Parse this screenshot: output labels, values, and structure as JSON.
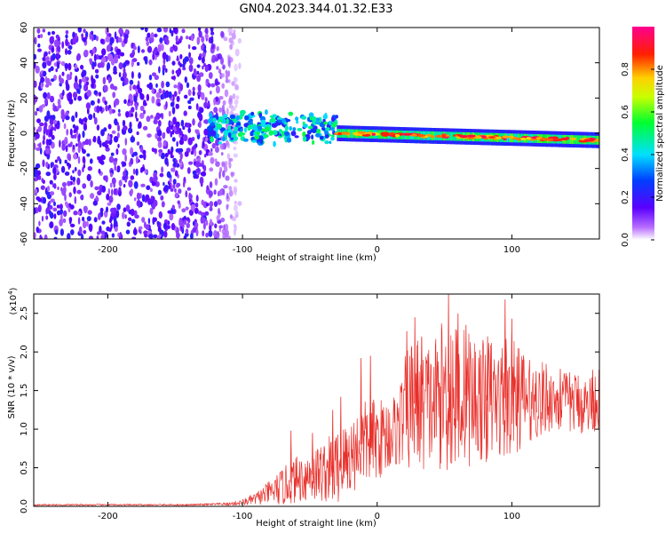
{
  "figure": {
    "title": "GN04.2023.344.01.32.E33",
    "colors": {
      "axis": "#000000",
      "snr_line": "#e8302b",
      "background": "#ffffff"
    }
  },
  "chart_data": [
    {
      "type": "heatmap",
      "name": "spectrogram",
      "title": "",
      "xlabel": "Height of straight line (km)",
      "ylabel": "Frequency (Hz)",
      "xlim": [
        -255,
        165
      ],
      "ylim": [
        -60,
        60
      ],
      "xticks": [
        -200,
        -100,
        0,
        100
      ],
      "xtick_labels": [
        "-200",
        "-100",
        "0",
        "100"
      ],
      "yticks": [
        -60,
        -40,
        -20,
        0,
        20,
        40,
        60
      ],
      "ytick_labels": [
        "-60",
        "-40",
        "-20",
        "0",
        "20",
        "40",
        "60"
      ],
      "colorbar": {
        "label": "Normalized spectral amplitude",
        "range": [
          0,
          1
        ],
        "ticks": [
          0,
          0.2,
          0.4,
          0.6,
          0.8
        ],
        "tick_labels": [
          "0.0",
          "0.2",
          "0.4",
          "0.6",
          "0.8"
        ],
        "colormap": "hsv-reversed (white→violet→blue→cyan→green→yellow→red→magenta)"
      },
      "regions": [
        {
          "description": "broadband noise",
          "x_range": [
            -255,
            -110
          ],
          "freq_range": [
            -60,
            60
          ],
          "amplitude": 0.1
        },
        {
          "description": "signal onset",
          "x_range": [
            -125,
            -30
          ],
          "center_freq": 3,
          "width_hz": 10,
          "amplitude": 0.35
        },
        {
          "description": "narrowband signal",
          "x_range": [
            -30,
            165
          ],
          "center_freq_start": 0,
          "center_freq_end": -4,
          "width_hz": 5,
          "amplitude": 0.9
        }
      ]
    },
    {
      "type": "line",
      "name": "snr",
      "title": "",
      "xlabel": "Height of straight line (km)",
      "ylabel": "SNR (10 * v/v)",
      "y_scale_label": "(x10",
      "y_scale_exp": "4",
      "y_scale_close": ")",
      "xlim": [
        -255,
        165
      ],
      "ylim": [
        0,
        2.75
      ],
      "xticks": [
        -200,
        -100,
        0,
        100
      ],
      "xtick_labels": [
        "-200",
        "-100",
        "0",
        "100"
      ],
      "yticks": [
        0,
        0.5,
        1.0,
        1.5,
        2.0,
        2.5
      ],
      "ytick_labels": [
        "0.0",
        "0.5",
        "1.0",
        "1.5",
        "2.0",
        "2.5"
      ],
      "series": [
        {
          "name": "SNR",
          "color": "#e8302b",
          "x": [
            -255,
            -230,
            -200,
            -170,
            -140,
            -110,
            -100,
            -90,
            -80,
            -70,
            -60,
            -50,
            -40,
            -30,
            -20,
            -12,
            -5,
            5,
            10,
            15,
            20,
            25,
            30,
            35,
            40,
            45,
            50,
            55,
            60,
            65,
            70,
            75,
            80,
            85,
            90,
            95,
            100,
            105,
            110,
            115,
            120,
            125,
            130,
            135,
            140,
            145,
            150,
            155,
            160,
            165
          ],
          "mean": [
            0.02,
            0.02,
            0.02,
            0.02,
            0.02,
            0.03,
            0.05,
            0.1,
            0.18,
            0.25,
            0.35,
            0.4,
            0.45,
            0.5,
            0.65,
            0.8,
            0.85,
            0.9,
            0.95,
            1.0,
            1.2,
            1.3,
            1.35,
            1.35,
            1.3,
            1.4,
            1.45,
            1.5,
            1.4,
            1.45,
            1.4,
            1.4,
            1.35,
            1.4,
            1.35,
            1.4,
            1.45,
            1.4,
            1.4,
            1.35,
            1.35,
            1.4,
            1.4,
            1.35,
            1.35,
            1.35,
            1.35,
            1.3,
            1.35,
            1.4
          ],
          "amp": [
            0.01,
            0.01,
            0.01,
            0.01,
            0.01,
            0.02,
            0.04,
            0.08,
            0.15,
            0.25,
            0.3,
            0.35,
            0.4,
            0.5,
            0.5,
            0.55,
            0.55,
            0.5,
            0.5,
            0.5,
            0.7,
            0.9,
            0.9,
            0.9,
            0.8,
            0.9,
            1.0,
            1.2,
            0.9,
            0.9,
            0.9,
            0.8,
            0.8,
            0.8,
            0.7,
            0.9,
            0.8,
            0.7,
            0.6,
            0.5,
            0.5,
            0.5,
            0.4,
            0.4,
            0.4,
            0.4,
            0.4,
            0.4,
            0.4,
            0.4
          ],
          "peaks": [
            [
              -64,
              0.98
            ],
            [
              -48,
              0.95
            ],
            [
              -33,
              1.25
            ],
            [
              -27,
              1.42
            ],
            [
              -12,
              1.92
            ],
            [
              -5,
              1.95
            ],
            [
              22,
              2.27
            ],
            [
              28,
              2.45
            ],
            [
              33,
              2.2
            ],
            [
              53,
              2.75
            ],
            [
              60,
              2.5
            ],
            [
              66,
              2.35
            ],
            [
              82,
              2.2
            ],
            [
              95,
              2.68
            ],
            [
              100,
              2.43
            ],
            [
              108,
              1.9
            ],
            [
              118,
              1.75
            ],
            [
              136,
              1.78
            ],
            [
              160,
              1.77
            ]
          ]
        }
      ]
    }
  ]
}
